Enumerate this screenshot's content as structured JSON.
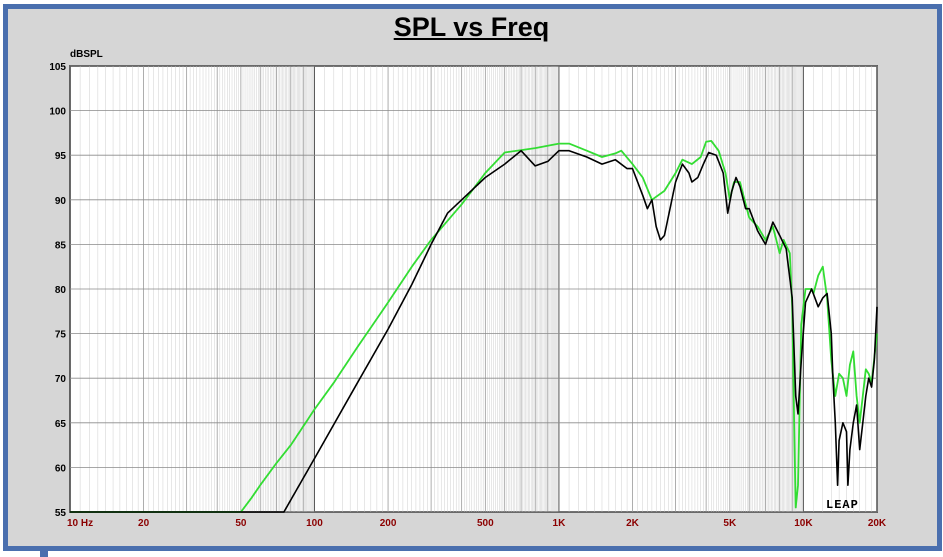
{
  "chart_data": {
    "type": "line",
    "title": "SPL vs Freq",
    "ylabel": "dBSPL",
    "xlabel": "",
    "x_scale": "log",
    "xlim": [
      10,
      20000
    ],
    "ylim": [
      55,
      105
    ],
    "grid": true,
    "y_ticks": [
      "105",
      "100",
      "95",
      "90",
      "85",
      "80",
      "75",
      "70",
      "65",
      "60",
      "55"
    ],
    "x_ticks": [
      {
        "v": 10,
        "label": "10 Hz"
      },
      {
        "v": 20,
        "label": "20"
      },
      {
        "v": 50,
        "label": "50"
      },
      {
        "v": 100,
        "label": "100"
      },
      {
        "v": 200,
        "label": "200"
      },
      {
        "v": 500,
        "label": "500"
      },
      {
        "v": 1000,
        "label": "1K"
      },
      {
        "v": 2000,
        "label": "2K"
      },
      {
        "v": 5000,
        "label": "5K"
      },
      {
        "v": 10000,
        "label": "10K"
      },
      {
        "v": 20000,
        "label": "20K"
      }
    ],
    "watermark": "LEAP",
    "series": [
      {
        "color": "#33dd33",
        "points": [
          [
            10,
            55
          ],
          [
            50,
            55
          ],
          [
            55,
            56.5
          ],
          [
            60,
            58
          ],
          [
            70,
            60.5
          ],
          [
            80,
            62.5
          ],
          [
            100,
            66.5
          ],
          [
            120,
            69.5
          ],
          [
            150,
            73.5
          ],
          [
            200,
            78.5
          ],
          [
            250,
            82.5
          ],
          [
            300,
            85.5
          ],
          [
            400,
            89.5
          ],
          [
            500,
            93
          ],
          [
            600,
            95.3
          ],
          [
            800,
            95.8
          ],
          [
            1000,
            96.3
          ],
          [
            1100,
            96.3
          ],
          [
            1300,
            95.5
          ],
          [
            1500,
            94.8
          ],
          [
            1700,
            95.2
          ],
          [
            1800,
            95.5
          ],
          [
            2000,
            94
          ],
          [
            2200,
            92.5
          ],
          [
            2400,
            90
          ],
          [
            2700,
            91
          ],
          [
            3000,
            93
          ],
          [
            3200,
            94.5
          ],
          [
            3500,
            94
          ],
          [
            3800,
            94.8
          ],
          [
            4000,
            96.5
          ],
          [
            4200,
            96.6
          ],
          [
            4500,
            95.5
          ],
          [
            4800,
            93
          ],
          [
            5000,
            90
          ],
          [
            5200,
            92
          ],
          [
            5500,
            92
          ],
          [
            6000,
            88
          ],
          [
            6500,
            87
          ],
          [
            7000,
            85.5
          ],
          [
            7500,
            87
          ],
          [
            8000,
            84
          ],
          [
            8300,
            85.5
          ],
          [
            8800,
            84
          ],
          [
            9000,
            78
          ],
          [
            9200,
            62
          ],
          [
            9300,
            55.5
          ],
          [
            9500,
            58
          ],
          [
            9800,
            76
          ],
          [
            10200,
            80
          ],
          [
            10800,
            80
          ],
          [
            11000,
            79.5
          ],
          [
            11500,
            81.5
          ],
          [
            12000,
            82.5
          ],
          [
            12500,
            79
          ],
          [
            13000,
            72
          ],
          [
            13500,
            68
          ],
          [
            14000,
            70.5
          ],
          [
            14500,
            70
          ],
          [
            15000,
            68
          ],
          [
            15500,
            71.5
          ],
          [
            16000,
            73
          ],
          [
            16500,
            68
          ],
          [
            17000,
            65
          ],
          [
            17500,
            68
          ],
          [
            18000,
            71
          ],
          [
            18500,
            70.5
          ],
          [
            19000,
            69.5
          ],
          [
            20000,
            75
          ]
        ]
      },
      {
        "color": "#000000",
        "points": [
          [
            10,
            55
          ],
          [
            75,
            55
          ],
          [
            100,
            61
          ],
          [
            150,
            69.5
          ],
          [
            200,
            75.5
          ],
          [
            250,
            80.5
          ],
          [
            300,
            85
          ],
          [
            350,
            88.5
          ],
          [
            400,
            90
          ],
          [
            500,
            92.5
          ],
          [
            600,
            94
          ],
          [
            700,
            95.5
          ],
          [
            800,
            93.8
          ],
          [
            900,
            94.3
          ],
          [
            1000,
            95.5
          ],
          [
            1100,
            95.5
          ],
          [
            1300,
            94.8
          ],
          [
            1500,
            94
          ],
          [
            1700,
            94.5
          ],
          [
            1900,
            93.5
          ],
          [
            2000,
            93.5
          ],
          [
            2200,
            90.5
          ],
          [
            2300,
            89
          ],
          [
            2400,
            90
          ],
          [
            2500,
            87
          ],
          [
            2600,
            85.5
          ],
          [
            2700,
            86
          ],
          [
            3000,
            92
          ],
          [
            3200,
            94
          ],
          [
            3400,
            93
          ],
          [
            3500,
            92
          ],
          [
            3700,
            92.5
          ],
          [
            3900,
            94
          ],
          [
            4100,
            95.3
          ],
          [
            4400,
            95
          ],
          [
            4700,
            93
          ],
          [
            4900,
            88.5
          ],
          [
            5100,
            91
          ],
          [
            5300,
            92.5
          ],
          [
            5500,
            91.5
          ],
          [
            5800,
            89
          ],
          [
            6000,
            89
          ],
          [
            6500,
            86.5
          ],
          [
            7000,
            85
          ],
          [
            7500,
            87.5
          ],
          [
            8000,
            86
          ],
          [
            8500,
            84.5
          ],
          [
            9000,
            79
          ],
          [
            9300,
            68
          ],
          [
            9500,
            66
          ],
          [
            9800,
            72
          ],
          [
            10200,
            78.5
          ],
          [
            10800,
            80
          ],
          [
            11500,
            78
          ],
          [
            12000,
            79
          ],
          [
            12500,
            79.5
          ],
          [
            13000,
            75
          ],
          [
            13200,
            70
          ],
          [
            13500,
            65
          ],
          [
            13800,
            58
          ],
          [
            14000,
            63
          ],
          [
            14500,
            65
          ],
          [
            15000,
            64
          ],
          [
            15200,
            58
          ],
          [
            15500,
            62
          ],
          [
            16000,
            65
          ],
          [
            16500,
            67
          ],
          [
            17000,
            62
          ],
          [
            17500,
            65
          ],
          [
            18000,
            68
          ],
          [
            18500,
            70
          ],
          [
            19000,
            69
          ],
          [
            19500,
            72
          ],
          [
            20000,
            78
          ]
        ]
      }
    ]
  }
}
